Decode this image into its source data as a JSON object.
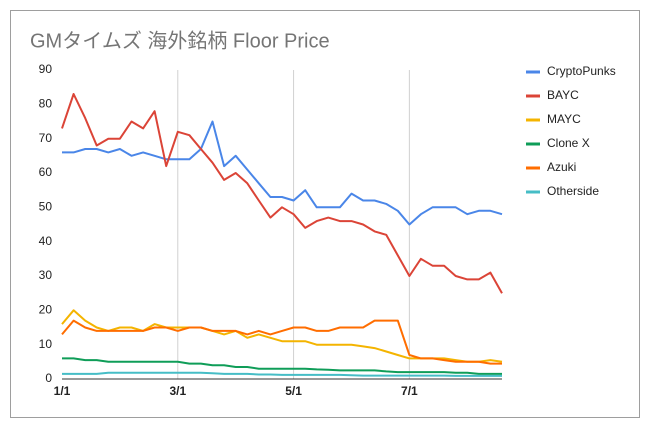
{
  "chart_data": {
    "type": "line",
    "title": "GMタイムズ 海外銘柄 Floor Price",
    "categories": [
      "1/1",
      null,
      null,
      null,
      null,
      null,
      null,
      null,
      null,
      null,
      "3/1",
      null,
      null,
      null,
      null,
      null,
      null,
      null,
      null,
      null,
      "5/1",
      null,
      null,
      null,
      null,
      null,
      null,
      null,
      null,
      null,
      "7/1",
      null,
      null,
      null,
      null,
      null,
      null,
      null,
      null
    ],
    "series": [
      {
        "name": "CryptoPunks",
        "color": "#4a86e8",
        "values": [
          66,
          66,
          67,
          67,
          66,
          67,
          65,
          66,
          65,
          64,
          64,
          64,
          67,
          75,
          62,
          65,
          61,
          57,
          53,
          53,
          52,
          55,
          50,
          50,
          50,
          54,
          52,
          52,
          51,
          49,
          45,
          48,
          50,
          50,
          50,
          48,
          49,
          49,
          48
        ]
      },
      {
        "name": "BAYC",
        "color": "#db4437",
        "values": [
          73,
          83,
          76,
          68,
          70,
          70,
          75,
          73,
          78,
          62,
          72,
          71,
          67,
          63,
          58,
          60,
          57,
          52,
          47,
          50,
          48,
          44,
          46,
          47,
          46,
          46,
          45,
          43,
          42,
          36,
          30,
          35,
          33,
          33,
          30,
          29,
          29,
          31,
          25
        ]
      },
      {
        "name": "MAYC",
        "color": "#f4b400",
        "values": [
          16,
          20,
          17,
          15,
          14,
          15,
          15,
          14,
          16,
          15,
          15,
          15,
          15,
          14,
          13,
          14,
          12,
          13,
          12,
          11,
          11,
          11,
          10,
          10,
          10,
          10,
          9.5,
          9,
          8,
          7,
          6,
          6,
          6,
          6,
          5.5,
          5,
          5,
          5.5,
          5
        ]
      },
      {
        "name": "Clone X",
        "color": "#0f9d58",
        "values": [
          6,
          6,
          5.5,
          5.5,
          5,
          5,
          5,
          5,
          5,
          5,
          5,
          4.5,
          4.5,
          4,
          4,
          3.5,
          3.5,
          3,
          3,
          3,
          3,
          3,
          2.8,
          2.7,
          2.5,
          2.5,
          2.5,
          2.5,
          2.2,
          2,
          2,
          2,
          2,
          2,
          1.8,
          1.8,
          1.5,
          1.5,
          1.5
        ]
      },
      {
        "name": "Azuki",
        "color": "#ff6d00",
        "values": [
          13,
          17,
          15,
          14,
          14,
          14,
          14,
          14,
          15,
          15,
          14,
          15,
          15,
          14,
          14,
          14,
          13,
          14,
          13,
          14,
          15,
          15,
          14,
          14,
          15,
          15,
          15,
          17,
          17,
          17,
          7,
          6,
          6,
          5.5,
          5,
          5,
          5,
          4.5,
          4.5
        ]
      },
      {
        "name": "Otherside",
        "color": "#46bdc6",
        "values": [
          1.5,
          1.5,
          1.5,
          1.5,
          1.8,
          1.8,
          1.8,
          1.8,
          1.8,
          1.8,
          1.8,
          1.8,
          1.8,
          1.7,
          1.5,
          1.5,
          1.5,
          1.3,
          1.3,
          1.2,
          1.2,
          1.2,
          1.2,
          1.2,
          1.2,
          1.1,
          1,
          1,
          1,
          1,
          1,
          1,
          1,
          1,
          0.9,
          0.9,
          0.9,
          0.9,
          0.9
        ]
      }
    ],
    "ylim": [
      0,
      90
    ],
    "yticks": [
      0,
      10,
      20,
      30,
      40,
      50,
      60,
      70,
      80,
      90
    ],
    "legend": "right"
  }
}
